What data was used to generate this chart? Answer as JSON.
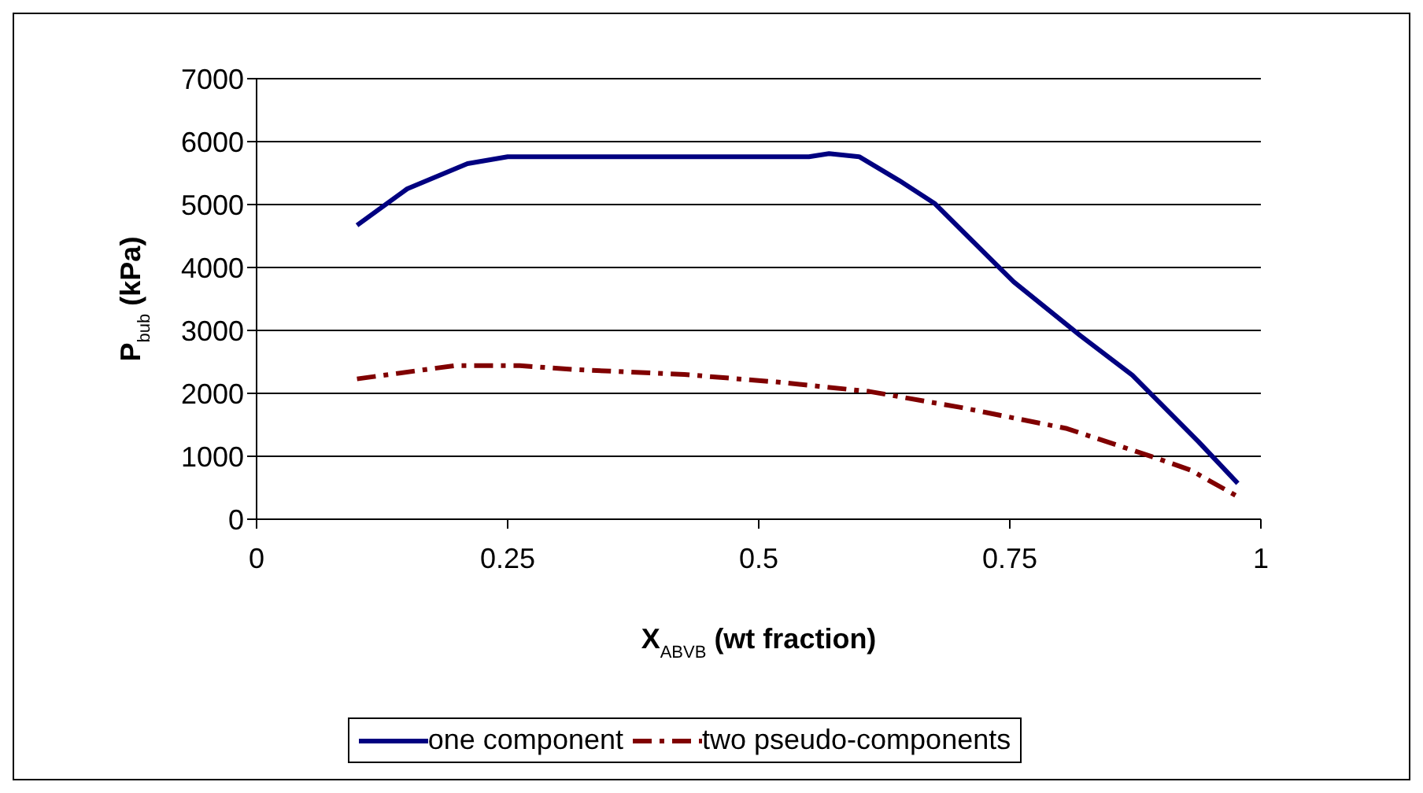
{
  "chart_data": {
    "type": "line",
    "xlabel": "X$_{ABVB}$ (wt fraction)",
    "ylabel": "P$_{bub}$ (kPa)",
    "xlim": [
      0,
      1
    ],
    "xticks": [
      0,
      0.25,
      0.5,
      0.75,
      1
    ],
    "ylim": [
      0,
      7000
    ],
    "yticks": [
      0,
      1000,
      2000,
      3000,
      4000,
      5000,
      6000,
      7000
    ],
    "grid": "y",
    "legend": "bottom",
    "marker": "none",
    "series": [
      {
        "name": "one component",
        "color": "#000080",
        "line_style": "solid",
        "x": [
          0.1,
          0.15,
          0.21,
          0.25,
          0.35,
          0.45,
          0.55,
          0.57,
          0.6,
          0.64,
          0.675,
          0.754,
          0.82,
          0.872,
          0.938,
          0.977
        ],
        "values": [
          4670,
          5250,
          5650,
          5760,
          5760,
          5760,
          5760,
          5810,
          5760,
          5380,
          5020,
          3770,
          2920,
          2290,
          1230,
          570
        ]
      },
      {
        "name": "two pseudo-components",
        "color": "#800000",
        "line_style": "dashed",
        "x": [
          0.1,
          0.197,
          0.262,
          0.315,
          0.426,
          0.518,
          0.61,
          0.7,
          0.807,
          0.898,
          0.93,
          0.977
        ],
        "values": [
          2230,
          2440,
          2440,
          2380,
          2300,
          2180,
          2030,
          1780,
          1440,
          960,
          780,
          360
        ]
      }
    ]
  }
}
